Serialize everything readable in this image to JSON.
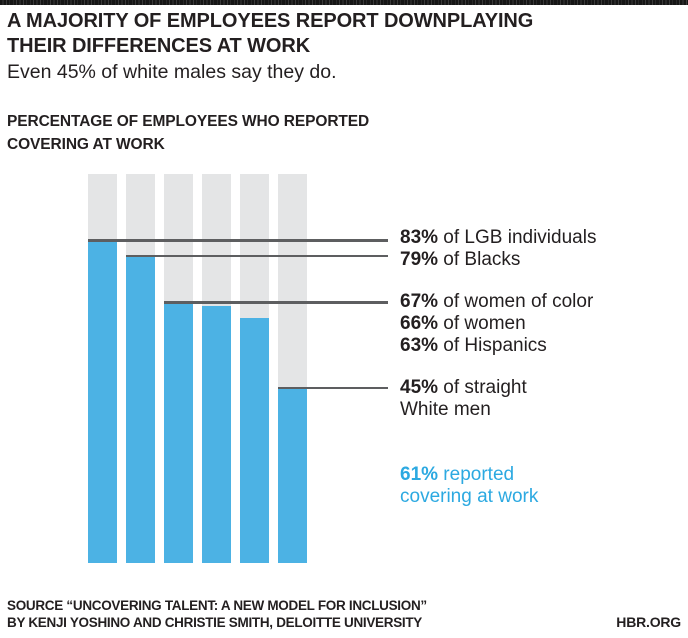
{
  "header": {
    "title_line1": "A MAJORITY OF EMPLOYEES REPORT DOWNPLAYING",
    "title_line2": "THEIR DIFFERENCES AT WORK",
    "subtitle": "Even 45% of white males say they do."
  },
  "chart_label": {
    "line1": "PERCENTAGE OF EMPLOYEES WHO REPORTED",
    "line2": "COVERING AT WORK"
  },
  "chart_data": {
    "type": "bar",
    "title": "Percentage of employees who reported covering at work",
    "categories": [
      "LGB individuals",
      "Blacks",
      "Women of color",
      "Women",
      "Hispanics",
      "Straight White men"
    ],
    "values": [
      83,
      79,
      67,
      66,
      63,
      45
    ],
    "ylim": [
      0,
      100
    ],
    "grid": false,
    "legend": false,
    "bar_color": "#4cb2e4",
    "track_color": "#e4e5e6",
    "leader_line_color": "#5d5e60",
    "leader_indices": [
      0,
      1,
      2,
      5
    ],
    "overall_note": "61% reported covering at work"
  },
  "annotations": [
    {
      "bold": "83%",
      "text": " of LGB individuals"
    },
    {
      "bold": "79%",
      "text": " of Blacks"
    },
    {
      "bold": "67%",
      "text": " of women of color"
    },
    {
      "bold": "66%",
      "text": " of women"
    },
    {
      "bold": "63%",
      "text": " of Hispanics"
    },
    {
      "bold": "45%",
      "text": " of straight",
      "line2": "White men"
    },
    {
      "bold": "61%",
      "text": " reported",
      "line2": "covering at work"
    }
  ],
  "footer": {
    "source_label": "SOURCE",
    "source_text": " “UNCOVERING TALENT: A NEW MODEL FOR INCLUSION”",
    "source_line2": "BY KENJI YOSHINO AND CHRISTIE SMITH, DELOITTE UNIVERSITY",
    "brand": "HBR.ORG"
  },
  "colors": {
    "accent_blue": "#2ca9e1",
    "text": "#231f20",
    "topbar": "#161616"
  }
}
